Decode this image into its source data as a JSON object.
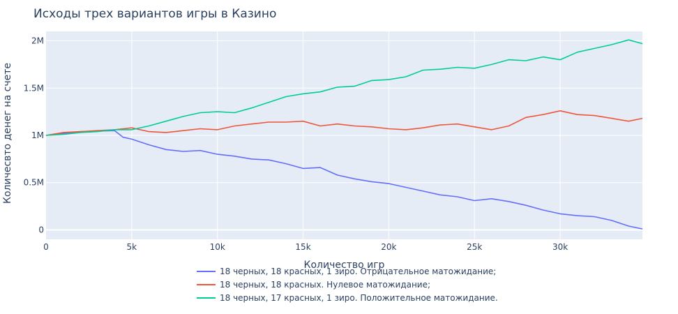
{
  "chart_data": {
    "type": "line",
    "title": "Исходы трех вариантов игры в Казино",
    "xlabel": "Количество игр",
    "ylabel": "Количесвто денег на счете",
    "xlim": [
      0,
      34800
    ],
    "ylim": [
      -100000,
      2100000
    ],
    "x_ticks": [
      0,
      5000,
      10000,
      15000,
      20000,
      25000,
      30000
    ],
    "x_tick_labels": [
      "0",
      "5k",
      "10k",
      "15k",
      "20k",
      "25k",
      "30k"
    ],
    "y_ticks": [
      0,
      500000,
      1000000,
      1500000,
      2000000
    ],
    "y_tick_labels": [
      "0",
      "0.5M",
      "1M",
      "1.5M",
      "2M"
    ],
    "grid": true,
    "legend_position": "bottom",
    "series": [
      {
        "name": "18 черных, 18 красных, 1 зиро. Отрицательное матожидание;",
        "color": "#636efa",
        "points": [
          [
            0,
            1000000
          ],
          [
            1000,
            1020000
          ],
          [
            2000,
            1035000
          ],
          [
            3000,
            1045000
          ],
          [
            4000,
            1050000
          ],
          [
            4500,
            980000
          ],
          [
            5000,
            960000
          ],
          [
            6000,
            900000
          ],
          [
            7000,
            850000
          ],
          [
            8000,
            830000
          ],
          [
            9000,
            840000
          ],
          [
            10000,
            800000
          ],
          [
            11000,
            780000
          ],
          [
            12000,
            750000
          ],
          [
            13000,
            740000
          ],
          [
            14000,
            700000
          ],
          [
            15000,
            650000
          ],
          [
            16000,
            660000
          ],
          [
            17000,
            580000
          ],
          [
            18000,
            540000
          ],
          [
            19000,
            510000
          ],
          [
            20000,
            490000
          ],
          [
            21000,
            450000
          ],
          [
            22000,
            410000
          ],
          [
            23000,
            370000
          ],
          [
            24000,
            350000
          ],
          [
            25000,
            310000
          ],
          [
            26000,
            330000
          ],
          [
            27000,
            300000
          ],
          [
            28000,
            260000
          ],
          [
            29000,
            210000
          ],
          [
            30000,
            170000
          ],
          [
            31000,
            150000
          ],
          [
            32000,
            140000
          ],
          [
            33000,
            100000
          ],
          [
            34000,
            40000
          ],
          [
            34800,
            10000
          ]
        ]
      },
      {
        "name": "18 черных, 18 красных. Нулевое матожидание;",
        "color": "#ef553b",
        "points": [
          [
            0,
            1000000
          ],
          [
            1000,
            1030000
          ],
          [
            2000,
            1040000
          ],
          [
            3000,
            1050000
          ],
          [
            4000,
            1060000
          ],
          [
            5000,
            1080000
          ],
          [
            6000,
            1040000
          ],
          [
            7000,
            1030000
          ],
          [
            8000,
            1050000
          ],
          [
            9000,
            1070000
          ],
          [
            10000,
            1060000
          ],
          [
            11000,
            1100000
          ],
          [
            12000,
            1120000
          ],
          [
            13000,
            1140000
          ],
          [
            14000,
            1140000
          ],
          [
            15000,
            1150000
          ],
          [
            16000,
            1100000
          ],
          [
            17000,
            1120000
          ],
          [
            18000,
            1100000
          ],
          [
            19000,
            1090000
          ],
          [
            20000,
            1070000
          ],
          [
            21000,
            1060000
          ],
          [
            22000,
            1080000
          ],
          [
            23000,
            1110000
          ],
          [
            24000,
            1120000
          ],
          [
            25000,
            1090000
          ],
          [
            26000,
            1060000
          ],
          [
            27000,
            1100000
          ],
          [
            28000,
            1190000
          ],
          [
            29000,
            1220000
          ],
          [
            30000,
            1260000
          ],
          [
            31000,
            1220000
          ],
          [
            32000,
            1210000
          ],
          [
            33000,
            1180000
          ],
          [
            34000,
            1150000
          ],
          [
            34800,
            1180000
          ]
        ]
      },
      {
        "name": "18 черных, 17 красных, 1 зиро. Положительное матожидание.",
        "color": "#00cc96",
        "points": [
          [
            0,
            1000000
          ],
          [
            1000,
            1010000
          ],
          [
            2000,
            1030000
          ],
          [
            3000,
            1040000
          ],
          [
            4000,
            1060000
          ],
          [
            5000,
            1060000
          ],
          [
            6000,
            1100000
          ],
          [
            7000,
            1150000
          ],
          [
            8000,
            1200000
          ],
          [
            9000,
            1240000
          ],
          [
            10000,
            1250000
          ],
          [
            11000,
            1240000
          ],
          [
            12000,
            1290000
          ],
          [
            13000,
            1350000
          ],
          [
            14000,
            1410000
          ],
          [
            15000,
            1440000
          ],
          [
            16000,
            1460000
          ],
          [
            17000,
            1510000
          ],
          [
            18000,
            1520000
          ],
          [
            19000,
            1580000
          ],
          [
            20000,
            1590000
          ],
          [
            21000,
            1620000
          ],
          [
            22000,
            1690000
          ],
          [
            23000,
            1700000
          ],
          [
            24000,
            1720000
          ],
          [
            25000,
            1710000
          ],
          [
            26000,
            1750000
          ],
          [
            27000,
            1800000
          ],
          [
            28000,
            1790000
          ],
          [
            29000,
            1830000
          ],
          [
            30000,
            1800000
          ],
          [
            31000,
            1880000
          ],
          [
            32000,
            1920000
          ],
          [
            33000,
            1960000
          ],
          [
            34000,
            2010000
          ],
          [
            34800,
            1970000
          ]
        ]
      }
    ]
  }
}
